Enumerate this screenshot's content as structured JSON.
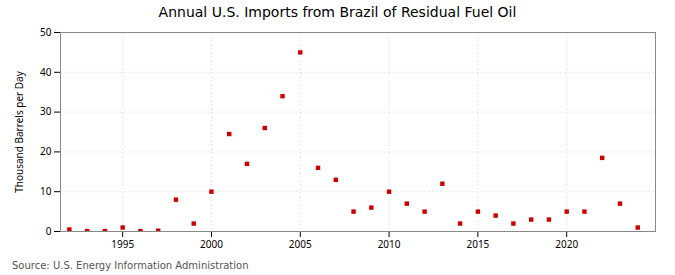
{
  "chart_data": {
    "type": "scatter",
    "title": "Annual U.S. Imports from Brazil of Residual Fuel Oil",
    "ylabel": "Thousand Barrels per Day",
    "source": "Source: U.S. Energy Information Administration",
    "x": [
      1992,
      1993,
      1994,
      1995,
      1996,
      1997,
      1998,
      1999,
      2000,
      2001,
      2002,
      2003,
      2004,
      2005,
      2006,
      2007,
      2008,
      2009,
      2010,
      2011,
      2012,
      2013,
      2014,
      2015,
      2016,
      2017,
      2018,
      2019,
      2020,
      2021,
      2022,
      2023,
      2024
    ],
    "values": [
      0.5,
      0.1,
      0.1,
      1.0,
      0.1,
      0.2,
      8.0,
      2.0,
      10.0,
      24.5,
      17.0,
      26.0,
      34.0,
      45.0,
      16.0,
      13.0,
      5.0,
      6.0,
      10.0,
      7.0,
      5.0,
      12.0,
      2.0,
      5.0,
      4.0,
      2.0,
      3.0,
      3.0,
      5.0,
      5.0,
      18.5,
      7.0,
      1.0
    ],
    "color": "#cc0000",
    "marker": "square",
    "xlim": [
      1991.5,
      2025
    ],
    "xticks": [
      1995,
      2000,
      2005,
      2010,
      2015,
      2020
    ],
    "ylim": [
      0,
      50
    ],
    "yticks": [
      0,
      10,
      20,
      30,
      40,
      50
    ],
    "grid": true
  }
}
